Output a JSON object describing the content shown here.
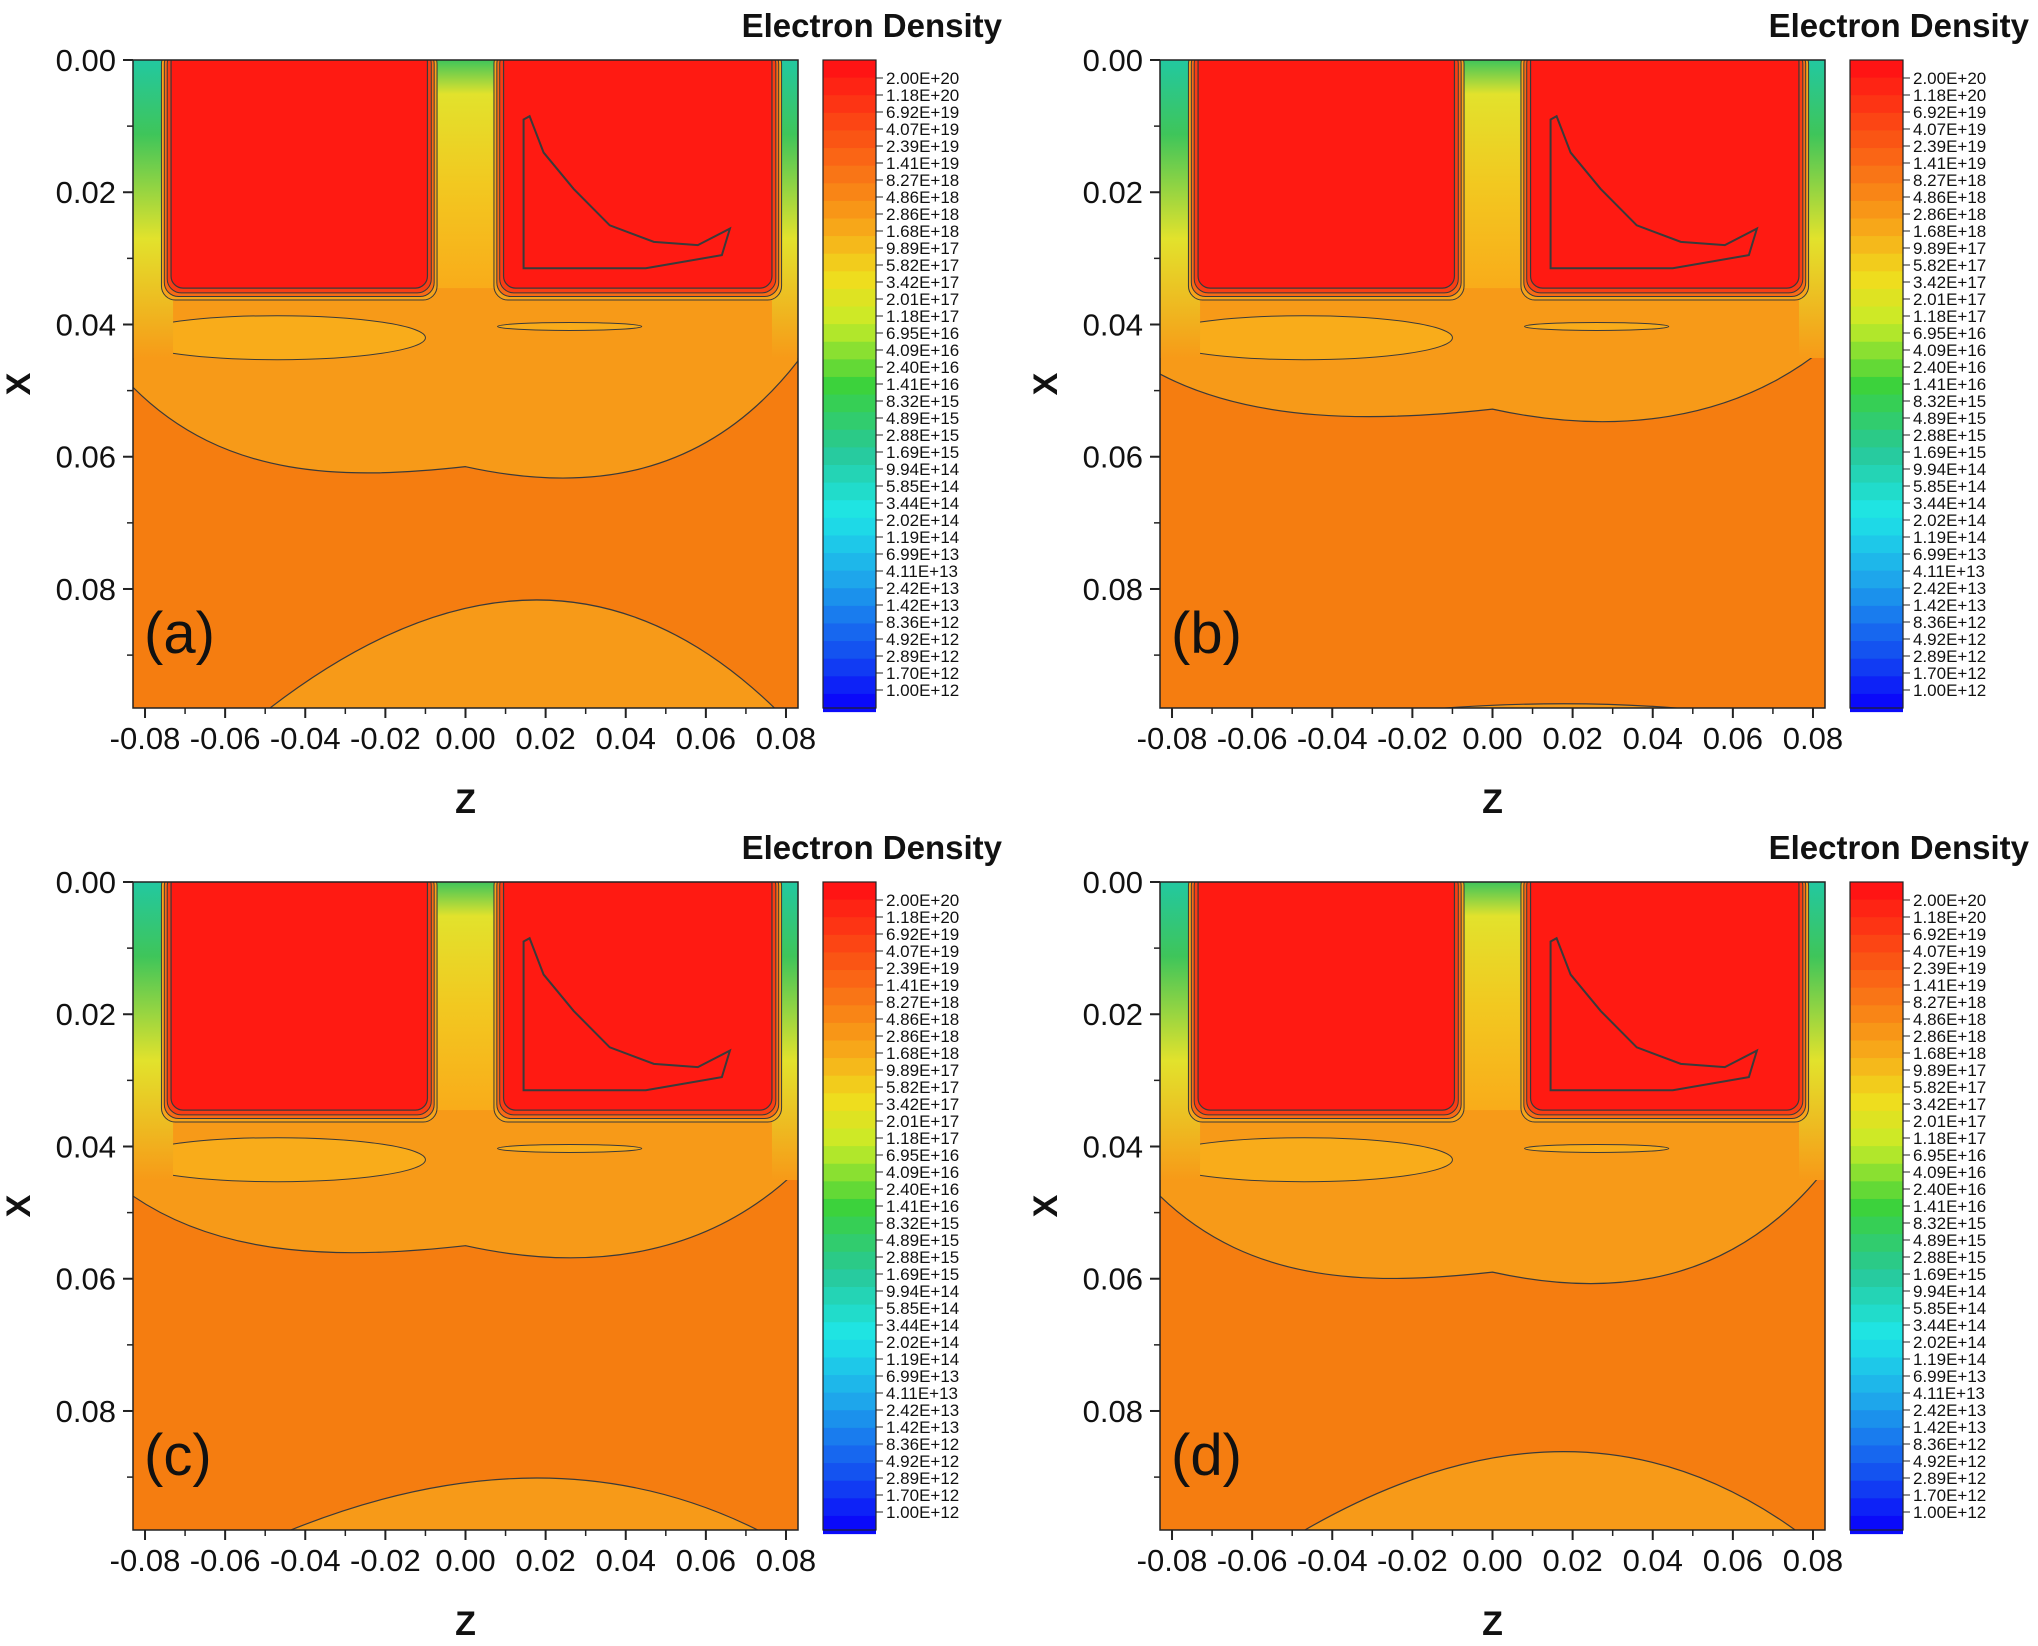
{
  "chart_data": {
    "type": "contour",
    "colorbar_title": "Electron Density",
    "xlabel": "Z",
    "ylabel": "X",
    "xlim": [
      -0.083,
      0.083
    ],
    "ylim": [
      0.0,
      0.098
    ],
    "x_ticks": [
      "-0.08",
      "-0.06",
      "-0.04",
      "-0.02",
      "0.00",
      "0.02",
      "0.04",
      "0.06",
      "0.08"
    ],
    "x_tick_values": [
      -0.08,
      -0.06,
      -0.04,
      -0.02,
      0.0,
      0.02,
      0.04,
      0.06,
      0.08
    ],
    "y_ticks": [
      "0.00",
      "0.02",
      "0.04",
      "0.06",
      "0.08"
    ],
    "y_tick_values": [
      0.0,
      0.02,
      0.04,
      0.06,
      0.08
    ],
    "colorbar_levels": [
      "2.00E+20",
      "1.18E+20",
      "6.92E+19",
      "4.07E+19",
      "2.39E+19",
      "1.41E+19",
      "8.27E+18",
      "4.86E+18",
      "2.86E+18",
      "1.68E+18",
      "9.89E+17",
      "5.82E+17",
      "3.42E+17",
      "2.01E+17",
      "1.18E+17",
      "6.95E+16",
      "4.09E+16",
      "2.40E+16",
      "1.41E+16",
      "8.32E+15",
      "4.89E+15",
      "2.88E+15",
      "1.69E+15",
      "9.94E+14",
      "5.85E+14",
      "3.44E+14",
      "2.02E+14",
      "1.19E+14",
      "6.99E+13",
      "4.11E+13",
      "2.42E+13",
      "1.42E+13",
      "8.36E+12",
      "4.92E+12",
      "2.89E+12",
      "1.70E+12",
      "1.00E+12"
    ],
    "colors": {
      "saturated": "#ff1a12",
      "background": "#f57d10",
      "band_mid": "#f79a18",
      "band_light": "#f9ac1a",
      "gap_yellow": "#e2e22c",
      "edge_green": "#3fc55a",
      "contour_line": "#3a3a3a"
    },
    "panels": [
      {
        "label": "(a)",
        "lower_cap_top": 0.0797,
        "band_bottom_center": 0.0635,
        "band_bottom_edge": 0.0495
      },
      {
        "label": "(b)",
        "lower_cap_top": 0.0958,
        "band_bottom_center": 0.0548,
        "band_bottom_edge": 0.0475
      },
      {
        "label": "(c)",
        "lower_cap_top": 0.0884,
        "band_bottom_center": 0.057,
        "band_bottom_edge": 0.0475
      },
      {
        "label": "(d)",
        "lower_cap_top": 0.0843,
        "band_bottom_center": 0.061,
        "band_bottom_edge": 0.0475
      }
    ]
  }
}
